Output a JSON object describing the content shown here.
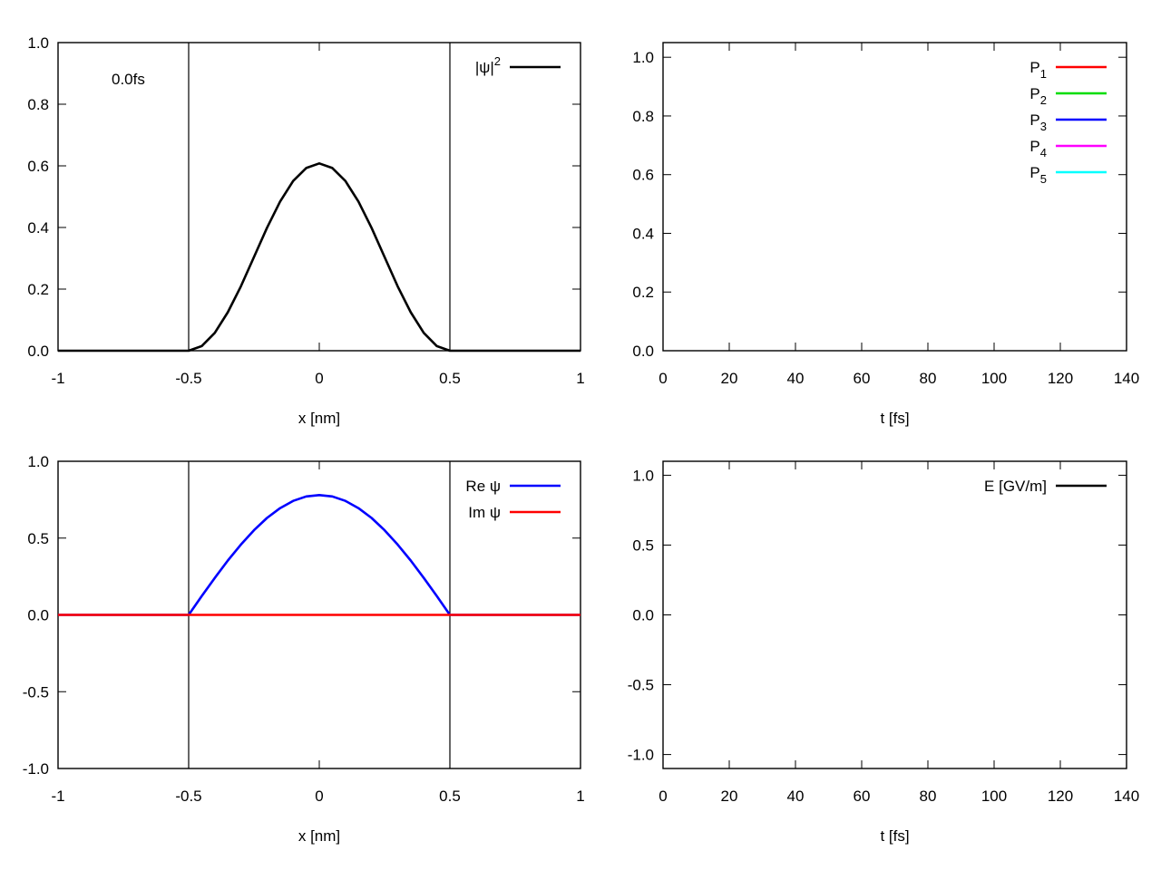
{
  "chart_data": [
    {
      "type": "line",
      "xlabel": "x [nm]",
      "xlim": [
        -1,
        1
      ],
      "ylim": [
        0,
        1
      ],
      "xticks": [
        -1,
        -0.5,
        0,
        0.5,
        1
      ],
      "xtick_labels": [
        "-1",
        "-0.5",
        "0",
        "0.5",
        "1"
      ],
      "yticks": [
        0,
        0.2,
        0.4,
        0.6,
        0.8,
        1.0
      ],
      "ytick_labels": [
        "0.0",
        "0.2",
        "0.4",
        "0.6",
        "0.8",
        "1.0"
      ],
      "vlines": [
        -0.5,
        0.5
      ],
      "annotation": "0.0fs",
      "legend_position": "top-right",
      "series": [
        {
          "name": "|ψ|",
          "name_sup": "2",
          "color": "#000000",
          "x": [
            -1,
            -0.5,
            -0.45,
            -0.4,
            -0.35,
            -0.3,
            -0.25,
            -0.2,
            -0.15,
            -0.1,
            -0.05,
            0,
            0.05,
            0.1,
            0.15,
            0.2,
            0.25,
            0.3,
            0.35,
            0.4,
            0.45,
            0.5,
            1
          ],
          "y": [
            0,
            0,
            0.015,
            0.058,
            0.125,
            0.209,
            0.304,
            0.399,
            0.484,
            0.551,
            0.593,
            0.608,
            0.593,
            0.551,
            0.484,
            0.399,
            0.304,
            0.209,
            0.125,
            0.058,
            0.015,
            0,
            0
          ]
        }
      ]
    },
    {
      "type": "line",
      "xlabel": "t [fs]",
      "xlim": [
        0,
        140
      ],
      "ylim": [
        0,
        1.05
      ],
      "xticks": [
        0,
        20,
        40,
        60,
        80,
        100,
        120,
        140
      ],
      "xtick_labels": [
        "0",
        "20",
        "40",
        "60",
        "80",
        "100",
        "120",
        "140"
      ],
      "yticks": [
        0,
        0.2,
        0.4,
        0.6,
        0.8,
        1.0
      ],
      "ytick_labels": [
        "0.0",
        "0.2",
        "0.4",
        "0.6",
        "0.8",
        "1.0"
      ],
      "legend_position": "top-right",
      "series": [
        {
          "name": "P",
          "name_sub": "1",
          "color": "#ff0000",
          "x": [],
          "y": []
        },
        {
          "name": "P",
          "name_sub": "2",
          "color": "#00dd00",
          "x": [],
          "y": []
        },
        {
          "name": "P",
          "name_sub": "3",
          "color": "#0000ff",
          "x": [],
          "y": []
        },
        {
          "name": "P",
          "name_sub": "4",
          "color": "#ff00ff",
          "x": [],
          "y": []
        },
        {
          "name": "P",
          "name_sub": "5",
          "color": "#00ffff",
          "x": [],
          "y": []
        }
      ]
    },
    {
      "type": "line",
      "xlabel": "x [nm]",
      "xlim": [
        -1,
        1
      ],
      "ylim": [
        -1,
        1
      ],
      "xticks": [
        -1,
        -0.5,
        0,
        0.5,
        1
      ],
      "xtick_labels": [
        "-1",
        "-0.5",
        "0",
        "0.5",
        "1"
      ],
      "yticks": [
        -1,
        -0.5,
        0,
        0.5,
        1
      ],
      "ytick_labels": [
        "-1.0",
        "-0.5",
        "0.0",
        "0.5",
        "1.0"
      ],
      "vlines": [
        -0.5,
        0.5
      ],
      "legend_position": "top-right",
      "series": [
        {
          "name": "Re ψ",
          "color": "#0000ff",
          "x": [
            -1,
            -0.5,
            -0.45,
            -0.4,
            -0.35,
            -0.3,
            -0.25,
            -0.2,
            -0.15,
            -0.1,
            -0.05,
            0,
            0.05,
            0.1,
            0.15,
            0.2,
            0.25,
            0.3,
            0.35,
            0.4,
            0.45,
            0.5,
            1
          ],
          "y": [
            0,
            0,
            0.122,
            0.241,
            0.354,
            0.458,
            0.551,
            0.631,
            0.695,
            0.742,
            0.771,
            0.78,
            0.771,
            0.742,
            0.695,
            0.631,
            0.551,
            0.458,
            0.354,
            0.241,
            0.122,
            0,
            0
          ]
        },
        {
          "name": "Im ψ",
          "color": "#ff0000",
          "x": [
            -1,
            1
          ],
          "y": [
            0,
            0
          ]
        }
      ]
    },
    {
      "type": "line",
      "xlabel": "t [fs]",
      "xlim": [
        0,
        140
      ],
      "ylim": [
        -1.1,
        1.1
      ],
      "xticks": [
        0,
        20,
        40,
        60,
        80,
        100,
        120,
        140
      ],
      "xtick_labels": [
        "0",
        "20",
        "40",
        "60",
        "80",
        "100",
        "120",
        "140"
      ],
      "yticks": [
        -1,
        -0.5,
        0,
        0.5,
        1
      ],
      "ytick_labels": [
        "-1.0",
        "-0.5",
        "0.0",
        "0.5",
        "1.0"
      ],
      "legend_position": "top-right",
      "series": [
        {
          "name": "E [GV/m]",
          "color": "#000000",
          "x": [],
          "y": []
        }
      ]
    }
  ]
}
